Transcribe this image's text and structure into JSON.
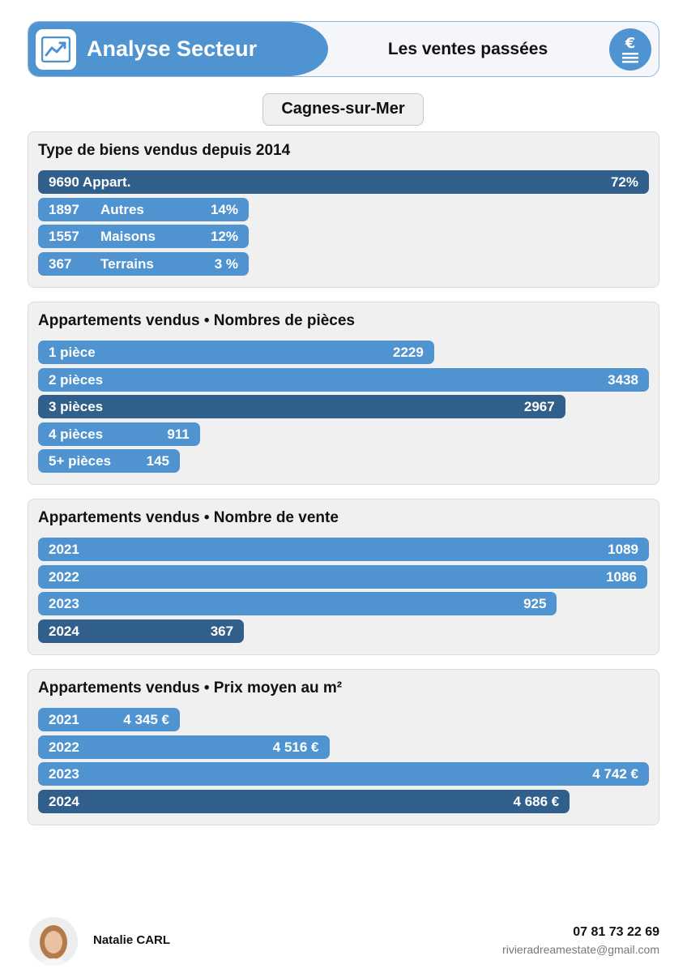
{
  "header": {
    "title": "Analyse Secteur",
    "subtitle": "Les ventes passées",
    "accent_color": "#4f93d1",
    "dark_color": "#2f5f8a",
    "left_icon": "chart-trend-icon",
    "right_icon": "euro-banknote-icon"
  },
  "city": "Cagnes-sur-Mer",
  "chart_data": [
    {
      "type": "bar",
      "orientation": "horizontal",
      "title": "Type de biens vendus depuis 2014",
      "categories": [
        "Appart.",
        "Autres",
        "Maisons",
        "Terrains"
      ],
      "values": [
        9690,
        1897,
        1557,
        367
      ],
      "count_labels": [
        "9690",
        "1897",
        "1557",
        "367"
      ],
      "percent_labels": [
        "72%",
        "14%",
        "12%",
        "3 %"
      ],
      "percents": [
        72,
        14,
        12,
        3
      ],
      "highlight_index": 0
    },
    {
      "type": "bar",
      "orientation": "horizontal",
      "title": "Appartements vendus • Nombres de pièces",
      "categories": [
        "1 pièce",
        "2 pièces",
        "3 pièces",
        "4 pièces",
        "5+ pièces"
      ],
      "values": [
        2229,
        3438,
        2967,
        911,
        145
      ],
      "value_labels": [
        "2229",
        "3438",
        "2967",
        "911",
        "145"
      ],
      "highlight_index": 2
    },
    {
      "type": "bar",
      "orientation": "horizontal",
      "title": "Appartements vendus • Nombre de vente",
      "categories": [
        "2021",
        "2022",
        "2023",
        "2024"
      ],
      "values": [
        1089,
        1086,
        925,
        367
      ],
      "value_labels": [
        "1089",
        "1086",
        "925",
        "367"
      ],
      "highlight_index": 3
    },
    {
      "type": "bar",
      "orientation": "horizontal",
      "title": "Appartements vendus • Prix moyen au m²",
      "categories": [
        "2021",
        "2022",
        "2023",
        "2024"
      ],
      "values": [
        4345,
        4516,
        4742,
        4686
      ],
      "value_labels": [
        "4 345 €",
        "4 516 €",
        "4 742 €",
        "4 686 €"
      ],
      "highlight_index": 3
    }
  ],
  "footer": {
    "agent_name": "Natalie CARL",
    "phone": "07 81 73 22 69",
    "email": "rivieradreamestate@gmail.com"
  }
}
